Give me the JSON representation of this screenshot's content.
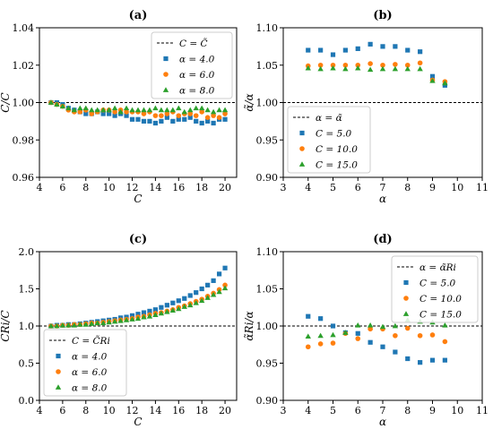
{
  "colors": {
    "series1": "#1f77b4",
    "series2": "#ff7f0e",
    "series3": "#2ca02c",
    "reference": "#000000"
  },
  "chart_data": [
    {
      "type": "scatter",
      "title": "(a)",
      "xlabel": "C",
      "ylabel": "C̃/C",
      "xlim": [
        4,
        21
      ],
      "ylim": [
        0.96,
        1.04
      ],
      "xticks": [
        4,
        6,
        8,
        10,
        12,
        14,
        16,
        18,
        20
      ],
      "yticks": [
        0.96,
        0.98,
        1.0,
        1.02,
        1.04
      ],
      "xtick_labels": [
        "4",
        "6",
        "8",
        "10",
        "12",
        "14",
        "16",
        "18",
        "20"
      ],
      "ytick_labels": [
        "0.96",
        "0.98",
        "1.00",
        "1.02",
        "1.04"
      ],
      "legend": "top-right",
      "legend_position": "top-right",
      "reference_line": {
        "y": 1.0,
        "label": "C = C̃"
      },
      "series": [
        {
          "name": "α = 4.0",
          "marker": "square",
          "x": [
            5.0,
            5.5,
            6.0,
            6.5,
            7.0,
            7.5,
            8.0,
            8.5,
            9.0,
            9.5,
            10.0,
            10.5,
            11.0,
            11.5,
            12.0,
            12.5,
            13.0,
            13.5,
            14.0,
            14.5,
            15.0,
            15.5,
            16.0,
            16.5,
            17.0,
            17.5,
            18.0,
            18.5,
            19.0,
            19.5,
            20.0
          ],
          "y": [
            1.0,
            1.0,
            0.999,
            0.997,
            0.996,
            0.995,
            0.994,
            0.994,
            0.995,
            0.994,
            0.994,
            0.993,
            0.994,
            0.993,
            0.991,
            0.991,
            0.99,
            0.99,
            0.989,
            0.99,
            0.992,
            0.99,
            0.991,
            0.991,
            0.992,
            0.99,
            0.989,
            0.99,
            0.989,
            0.991,
            0.991
          ]
        },
        {
          "name": "α = 6.0",
          "marker": "circle",
          "x": [
            5.0,
            5.5,
            6.0,
            6.5,
            7.0,
            7.5,
            8.0,
            8.5,
            9.0,
            9.5,
            10.0,
            10.5,
            11.0,
            11.5,
            12.0,
            12.5,
            13.0,
            13.5,
            14.0,
            14.5,
            15.0,
            15.5,
            16.0,
            16.5,
            17.0,
            17.5,
            18.0,
            18.5,
            19.0,
            19.5,
            20.0
          ],
          "y": [
            1.0,
            0.999,
            0.998,
            0.996,
            0.995,
            0.995,
            0.996,
            0.994,
            0.995,
            0.996,
            0.996,
            0.995,
            0.996,
            0.995,
            0.995,
            0.995,
            0.994,
            0.995,
            0.993,
            0.993,
            0.994,
            0.995,
            0.993,
            0.994,
            0.994,
            0.993,
            0.995,
            0.992,
            0.993,
            0.992,
            0.994
          ]
        },
        {
          "name": "α = 8.0",
          "marker": "triangle",
          "x": [
            5.0,
            5.5,
            6.0,
            6.5,
            7.0,
            7.5,
            8.0,
            8.5,
            9.0,
            9.5,
            10.0,
            10.5,
            11.0,
            11.5,
            12.0,
            12.5,
            13.0,
            13.5,
            14.0,
            14.5,
            15.0,
            15.5,
            16.0,
            16.5,
            17.0,
            17.5,
            18.0,
            18.5,
            19.0,
            19.5,
            20.0
          ],
          "y": [
            1.0,
            0.999,
            0.998,
            0.997,
            0.996,
            0.997,
            0.997,
            0.996,
            0.996,
            0.996,
            0.996,
            0.997,
            0.995,
            0.997,
            0.996,
            0.996,
            0.996,
            0.996,
            0.997,
            0.996,
            0.996,
            0.996,
            0.997,
            0.995,
            0.996,
            0.997,
            0.997,
            0.996,
            0.995,
            0.996,
            0.996
          ]
        }
      ]
    },
    {
      "type": "scatter",
      "title": "(b)",
      "xlabel": "α",
      "ylabel": "α̃/α",
      "xlim": [
        3,
        11
      ],
      "ylim": [
        0.9,
        1.1
      ],
      "xticks": [
        3,
        4,
        5,
        6,
        7,
        8,
        9,
        10,
        11
      ],
      "yticks": [
        0.9,
        0.95,
        1.0,
        1.05,
        1.1
      ],
      "xtick_labels": [
        "3",
        "4",
        "5",
        "6",
        "7",
        "8",
        "9",
        "10",
        "11"
      ],
      "ytick_labels": [
        "0.90",
        "0.95",
        "1.00",
        "1.05",
        "1.10"
      ],
      "legend": "bottom-left",
      "legend_position": "bottom-left",
      "reference_line": {
        "y": 1.0,
        "label": "α = α̃"
      },
      "series": [
        {
          "name": "C = 5.0",
          "marker": "square",
          "x": [
            4.0,
            4.5,
            5.0,
            5.5,
            6.0,
            6.5,
            7.0,
            7.5,
            8.0,
            8.5,
            9.0,
            9.5
          ],
          "y": [
            1.07,
            1.07,
            1.064,
            1.07,
            1.072,
            1.078,
            1.075,
            1.075,
            1.07,
            1.068,
            1.035,
            1.023
          ]
        },
        {
          "name": "C = 10.0",
          "marker": "circle",
          "x": [
            4.0,
            4.5,
            5.0,
            5.5,
            6.0,
            6.5,
            7.0,
            7.5,
            8.0,
            8.5,
            9.0,
            9.5
          ],
          "y": [
            1.049,
            1.05,
            1.05,
            1.05,
            1.05,
            1.052,
            1.05,
            1.051,
            1.05,
            1.053,
            1.03,
            1.028
          ]
        },
        {
          "name": "C = 15.0",
          "marker": "triangle",
          "x": [
            4.0,
            4.5,
            5.0,
            5.5,
            6.0,
            6.5,
            7.0,
            7.5,
            8.0,
            8.5,
            9.0,
            9.5
          ],
          "y": [
            1.046,
            1.045,
            1.046,
            1.045,
            1.046,
            1.044,
            1.045,
            1.045,
            1.045,
            1.045,
            1.029,
            1.026
          ]
        }
      ]
    },
    {
      "type": "scatter",
      "title": "(c)",
      "xlabel": "C",
      "ylabel": "C̃Ri/C",
      "xlim": [
        4,
        21
      ],
      "ylim": [
        0.0,
        2.0
      ],
      "xticks": [
        4,
        6,
        8,
        10,
        12,
        14,
        16,
        18,
        20
      ],
      "yticks": [
        0.0,
        0.5,
        1.0,
        1.5,
        2.0
      ],
      "xtick_labels": [
        "4",
        "6",
        "8",
        "10",
        "12",
        "14",
        "16",
        "18",
        "20"
      ],
      "ytick_labels": [
        "0.0",
        "0.5",
        "1.0",
        "1.5",
        "2.0"
      ],
      "legend": "bottom-left",
      "legend_position": "bottom-left",
      "reference_line": {
        "y": 1.0,
        "label": "C = C̃Ri"
      },
      "series": [
        {
          "name": "α = 4.0",
          "marker": "square",
          "x": [
            5.0,
            5.5,
            6.0,
            6.5,
            7.0,
            7.5,
            8.0,
            8.5,
            9.0,
            9.5,
            10.0,
            10.5,
            11.0,
            11.5,
            12.0,
            12.5,
            13.0,
            13.5,
            14.0,
            14.5,
            15.0,
            15.5,
            16.0,
            16.5,
            17.0,
            17.5,
            18.0,
            18.5,
            19.0,
            19.5,
            20.0
          ],
          "y": [
            1.0,
            1.01,
            1.01,
            1.02,
            1.02,
            1.03,
            1.04,
            1.05,
            1.06,
            1.07,
            1.08,
            1.09,
            1.11,
            1.12,
            1.14,
            1.16,
            1.18,
            1.2,
            1.22,
            1.25,
            1.28,
            1.31,
            1.34,
            1.37,
            1.41,
            1.45,
            1.5,
            1.55,
            1.61,
            1.7,
            1.78
          ]
        },
        {
          "name": "α = 6.0",
          "marker": "circle",
          "x": [
            5.0,
            5.5,
            6.0,
            6.5,
            7.0,
            7.5,
            8.0,
            8.5,
            9.0,
            9.5,
            10.0,
            10.5,
            11.0,
            11.5,
            12.0,
            12.5,
            13.0,
            13.5,
            14.0,
            14.5,
            15.0,
            15.5,
            16.0,
            16.5,
            17.0,
            17.5,
            18.0,
            18.5,
            19.0,
            19.5,
            20.0
          ],
          "y": [
            1.0,
            1.0,
            1.01,
            1.01,
            1.02,
            1.02,
            1.03,
            1.04,
            1.04,
            1.05,
            1.06,
            1.07,
            1.08,
            1.09,
            1.1,
            1.12,
            1.13,
            1.15,
            1.17,
            1.18,
            1.2,
            1.22,
            1.25,
            1.27,
            1.3,
            1.33,
            1.36,
            1.4,
            1.44,
            1.49,
            1.55
          ]
        },
        {
          "name": "α = 8.0",
          "marker": "triangle",
          "x": [
            5.0,
            5.5,
            6.0,
            6.5,
            7.0,
            7.5,
            8.0,
            8.5,
            9.0,
            9.5,
            10.0,
            10.5,
            11.0,
            11.5,
            12.0,
            12.5,
            13.0,
            13.5,
            14.0,
            14.5,
            15.0,
            15.5,
            16.0,
            16.5,
            17.0,
            17.5,
            18.0,
            18.5,
            19.0,
            19.5,
            20.0
          ],
          "y": [
            1.0,
            1.0,
            1.01,
            1.01,
            1.01,
            1.02,
            1.02,
            1.03,
            1.04,
            1.04,
            1.05,
            1.06,
            1.07,
            1.08,
            1.09,
            1.1,
            1.12,
            1.13,
            1.15,
            1.17,
            1.19,
            1.21,
            1.23,
            1.26,
            1.28,
            1.31,
            1.34,
            1.38,
            1.42,
            1.46,
            1.51
          ]
        }
      ]
    },
    {
      "type": "scatter",
      "title": "(d)",
      "xlabel": "α",
      "ylabel": "α̃Ri/α",
      "xlim": [
        3,
        11
      ],
      "ylim": [
        0.9,
        1.1
      ],
      "xticks": [
        3,
        4,
        5,
        6,
        7,
        8,
        9,
        10,
        11
      ],
      "yticks": [
        0.9,
        0.95,
        1.0,
        1.05,
        1.1
      ],
      "xtick_labels": [
        "3",
        "4",
        "5",
        "6",
        "7",
        "8",
        "9",
        "10",
        "11"
      ],
      "ytick_labels": [
        "0.90",
        "0.95",
        "1.00",
        "1.05",
        "1.10"
      ],
      "legend": "top-right",
      "legend_position": "top-right",
      "reference_line": {
        "y": 1.0,
        "label": "α = α̃Ri"
      },
      "series": [
        {
          "name": "C = 5.0",
          "marker": "square",
          "x": [
            4.0,
            4.5,
            5.0,
            5.5,
            6.0,
            6.5,
            7.0,
            7.5,
            8.0,
            8.5,
            9.0,
            9.5
          ],
          "y": [
            1.013,
            1.01,
            1.0,
            0.991,
            0.99,
            0.978,
            0.972,
            0.965,
            0.956,
            0.951,
            0.954,
            0.954
          ]
        },
        {
          "name": "C = 10.0",
          "marker": "circle",
          "x": [
            4.0,
            4.5,
            5.0,
            5.5,
            6.0,
            6.5,
            7.0,
            7.5,
            8.0,
            8.5,
            9.0,
            9.5
          ],
          "y": [
            0.972,
            0.976,
            0.977,
            0.99,
            0.983,
            0.996,
            0.996,
            0.987,
            0.997,
            0.987,
            0.988,
            0.979
          ]
        },
        {
          "name": "C = 15.0",
          "marker": "triangle",
          "x": [
            4.0,
            4.5,
            5.0,
            5.5,
            6.0,
            6.5,
            7.0,
            7.5,
            8.0,
            8.5,
            9.0,
            9.5
          ],
          "y": [
            0.986,
            0.987,
            0.988,
            0.991,
            1.001,
            1.001,
            0.999,
            1.0,
            1.008,
            1.006,
            1.005,
            1.001
          ]
        }
      ]
    }
  ]
}
